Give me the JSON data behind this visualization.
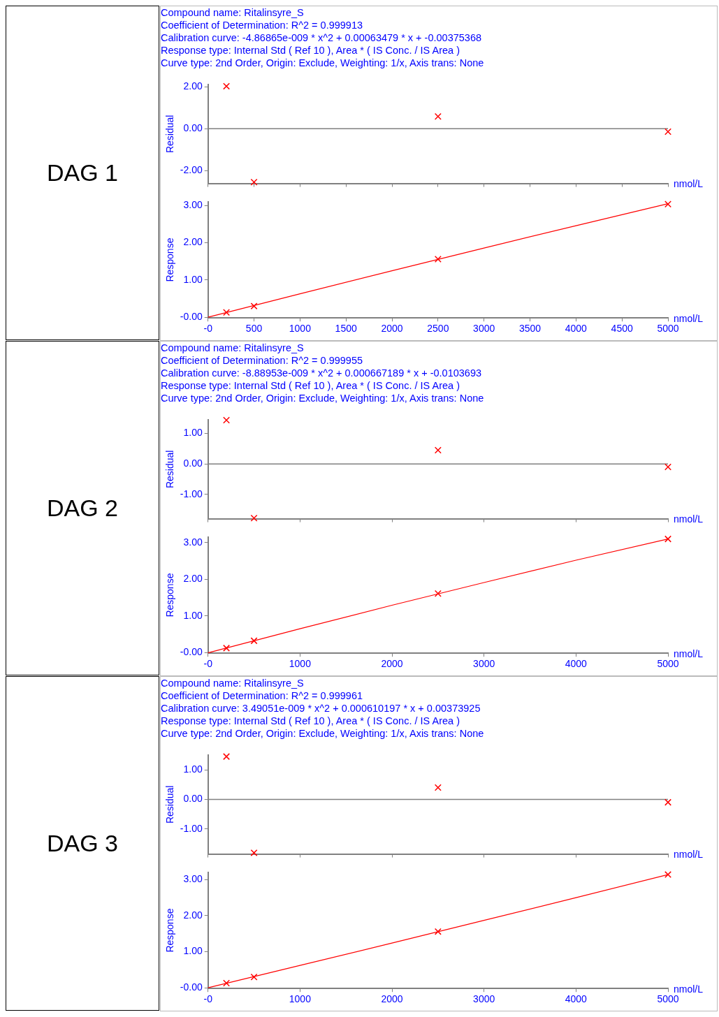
{
  "chart_data": [
    {
      "type": "scatter",
      "title": "Compound name: Ritalinsyre_S",
      "annotations": [
        "Coefficient of Determination: R^2 = 0.999913",
        "Calibration curve: -4.86865e-009 * x^2 + 0.00063479 * x + -0.00375368",
        "Response type: Internal Std ( Ref 10 ), Area * ( IS Conc. / IS Area )",
        "Curve type: 2nd Order, Origin: Exclude, Weighting: 1/x, Axis trans: None",
        "DAG 1"
      ],
      "ylabel": "Residual",
      "xlabel": "nmol/L",
      "x": [
        200,
        500,
        2500,
        5000
      ],
      "values": [
        2.02,
        -2.54,
        0.58,
        -0.14
      ],
      "color": "#ff0000",
      "marker": "cross",
      "xlim": [
        0,
        5000
      ],
      "xticks": [
        {
          "value": 0,
          "label": null
        },
        {
          "value": 500,
          "label": null
        },
        {
          "value": 1000,
          "label": null
        },
        {
          "value": 1500,
          "label": null
        },
        {
          "value": 2000,
          "label": null
        },
        {
          "value": 2500,
          "label": null
        },
        {
          "value": 3000,
          "label": null
        },
        {
          "value": 3500,
          "label": null
        },
        {
          "value": 4000,
          "label": null
        },
        {
          "value": 4500,
          "label": null
        },
        {
          "value": 5000,
          "label": null
        }
      ],
      "ylim": [
        -2.6,
        2.1
      ],
      "yticks": [
        {
          "value": 2,
          "label": "2.00"
        },
        {
          "value": 0,
          "label": "0.00"
        },
        {
          "value": -2,
          "label": "-2.00"
        }
      ],
      "tick_labels": "y",
      "ref_lines": [
        {
          "axis": "y",
          "value": 0,
          "color": "#808080"
        }
      ],
      "grid": false
    },
    {
      "type": "line",
      "ylabel": "Response",
      "xlabel": "nmol/L",
      "series": [
        {
          "type": "scatter",
          "x": [
            200,
            500,
            2500,
            5000
          ],
          "values": [
            0.13,
            0.3,
            1.56,
            3.04
          ],
          "color": "#ff0000",
          "marker": "cross"
        },
        {
          "x": [
            0,
            1000,
            2000,
            3000,
            4000,
            5000
          ],
          "values": [
            0,
            0.63,
            1.25,
            1.86,
            2.46,
            3.05
          ],
          "color": "#ff0000",
          "marker": "none"
        }
      ],
      "xlim": [
        0,
        5000
      ],
      "xticks": [
        {
          "value": 0,
          "label": "-0"
        },
        500,
        1000,
        1500,
        2000,
        2500,
        3000,
        3500,
        4000,
        4500,
        5000
      ],
      "ylim": [
        -0.02,
        3.1
      ],
      "yticks": [
        {
          "value": 0,
          "label": "-0.00"
        },
        {
          "value": 1,
          "label": "1.00"
        },
        {
          "value": 2,
          "label": "2.00"
        },
        {
          "value": 3,
          "label": "3.00"
        }
      ],
      "grid": false
    },
    {
      "type": "scatter",
      "title": "Compound name: Ritalinsyre_S",
      "annotations": [
        "Coefficient of Determination: R^2 = 0.999955",
        "Calibration curve: -8.88953e-009 * x^2 + 0.000667189 * x + -0.0103693",
        "Response type: Internal Std ( Ref 10 ), Area * ( IS Conc. / IS Area )",
        "Curve type: 2nd Order, Origin: Exclude, Weighting: 1/x, Axis trans: None",
        "DAG 2"
      ],
      "ylabel": "Residual",
      "xlabel": "nmol/L",
      "x": [
        200,
        500,
        2500,
        5000
      ],
      "values": [
        1.44,
        -1.78,
        0.45,
        -0.1
      ],
      "color": "#ff0000",
      "marker": "cross",
      "xlim": [
        0,
        5000
      ],
      "xticks": [
        {
          "value": 0,
          "label": null
        },
        {
          "value": 1000,
          "label": null
        },
        {
          "value": 2000,
          "label": null
        },
        {
          "value": 3000,
          "label": null
        },
        {
          "value": 4000,
          "label": null
        },
        {
          "value": 5000,
          "label": null
        }
      ],
      "ylim": [
        -1.8,
        1.45
      ],
      "yticks": [
        {
          "value": 1,
          "label": "1.00"
        },
        {
          "value": 0,
          "label": "0.00"
        },
        {
          "value": -1,
          "label": "-1.00"
        }
      ],
      "tick_labels": "y",
      "ref_lines": [
        {
          "axis": "y",
          "value": 0,
          "color": "#808080"
        }
      ],
      "grid": false
    },
    {
      "type": "line",
      "ylabel": "Response",
      "xlabel": "nmol/L",
      "series": [
        {
          "type": "scatter",
          "x": [
            200,
            500,
            2500,
            5000
          ],
          "values": [
            0.12,
            0.32,
            1.61,
            3.1
          ],
          "color": "#ff0000",
          "marker": "cross"
        },
        {
          "x": [
            0,
            1000,
            2000,
            3000,
            4000,
            5000
          ],
          "values": [
            -0.01,
            0.65,
            1.29,
            1.91,
            2.52,
            3.1
          ],
          "color": "#ff0000",
          "marker": "none"
        }
      ],
      "xlim": [
        0,
        5000
      ],
      "xticks": [
        {
          "value": 0,
          "label": "-0"
        },
        1000,
        2000,
        3000,
        4000,
        5000
      ],
      "ylim": [
        -0.02,
        3.15
      ],
      "yticks": [
        {
          "value": 0,
          "label": "-0.00"
        },
        {
          "value": 1,
          "label": "1.00"
        },
        {
          "value": 2,
          "label": "2.00"
        },
        {
          "value": 3,
          "label": "3.00"
        }
      ],
      "grid": false
    },
    {
      "type": "scatter",
      "title": "Compound name: Ritalinsyre_S",
      "annotations": [
        "Coefficient of Determination: R^2 = 0.999961",
        "Calibration curve: 3.49051e-009 * x^2 + 0.000610197 * x + 0.00373925",
        "Response type: Internal Std ( Ref 10 ), Area * ( IS Conc. / IS Area )",
        "Curve type: 2nd Order, Origin: Exclude, Weighting: 1/x, Axis trans: None",
        "DAG 3"
      ],
      "ylabel": "Residual",
      "xlabel": "nmol/L",
      "x": [
        200,
        500,
        2500,
        5000
      ],
      "values": [
        1.45,
        -1.81,
        0.4,
        -0.1
      ],
      "color": "#ff0000",
      "marker": "cross",
      "xlim": [
        0,
        5000
      ],
      "xticks": [
        {
          "value": 0,
          "label": null
        },
        {
          "value": 1000,
          "label": null
        },
        {
          "value": 2000,
          "label": null
        },
        {
          "value": 3000,
          "label": null
        },
        {
          "value": 4000,
          "label": null
        },
        {
          "value": 5000,
          "label": null
        }
      ],
      "ylim": [
        -1.85,
        1.5
      ],
      "yticks": [
        {
          "value": 1,
          "label": "1.00"
        },
        {
          "value": 0,
          "label": "0.00"
        },
        {
          "value": -1,
          "label": "-1.00"
        }
      ],
      "tick_labels": "y",
      "ref_lines": [
        {
          "axis": "y",
          "value": 0,
          "color": "#808080"
        }
      ],
      "grid": false
    },
    {
      "type": "line",
      "ylabel": "Response",
      "xlabel": "nmol/L",
      "series": [
        {
          "type": "scatter",
          "x": [
            200,
            500,
            2500,
            5000
          ],
          "values": [
            0.13,
            0.3,
            1.56,
            3.14
          ],
          "color": "#ff0000",
          "marker": "cross"
        },
        {
          "x": [
            0,
            1000,
            2000,
            3000,
            4000,
            5000
          ],
          "values": [
            0,
            0.62,
            1.24,
            1.87,
            2.5,
            3.14
          ],
          "color": "#ff0000",
          "marker": "none"
        }
      ],
      "xlim": [
        0,
        5000
      ],
      "xticks": [
        {
          "value": 0,
          "label": "-0"
        },
        1000,
        2000,
        3000,
        4000,
        5000
      ],
      "ylim": [
        -0.02,
        3.2
      ],
      "yticks": [
        {
          "value": 0,
          "label": "-0.00"
        },
        {
          "value": 1,
          "label": "1.00"
        },
        {
          "value": 2,
          "label": "2.00"
        },
        {
          "value": 3,
          "label": "3.00"
        }
      ],
      "grid": false
    }
  ]
}
